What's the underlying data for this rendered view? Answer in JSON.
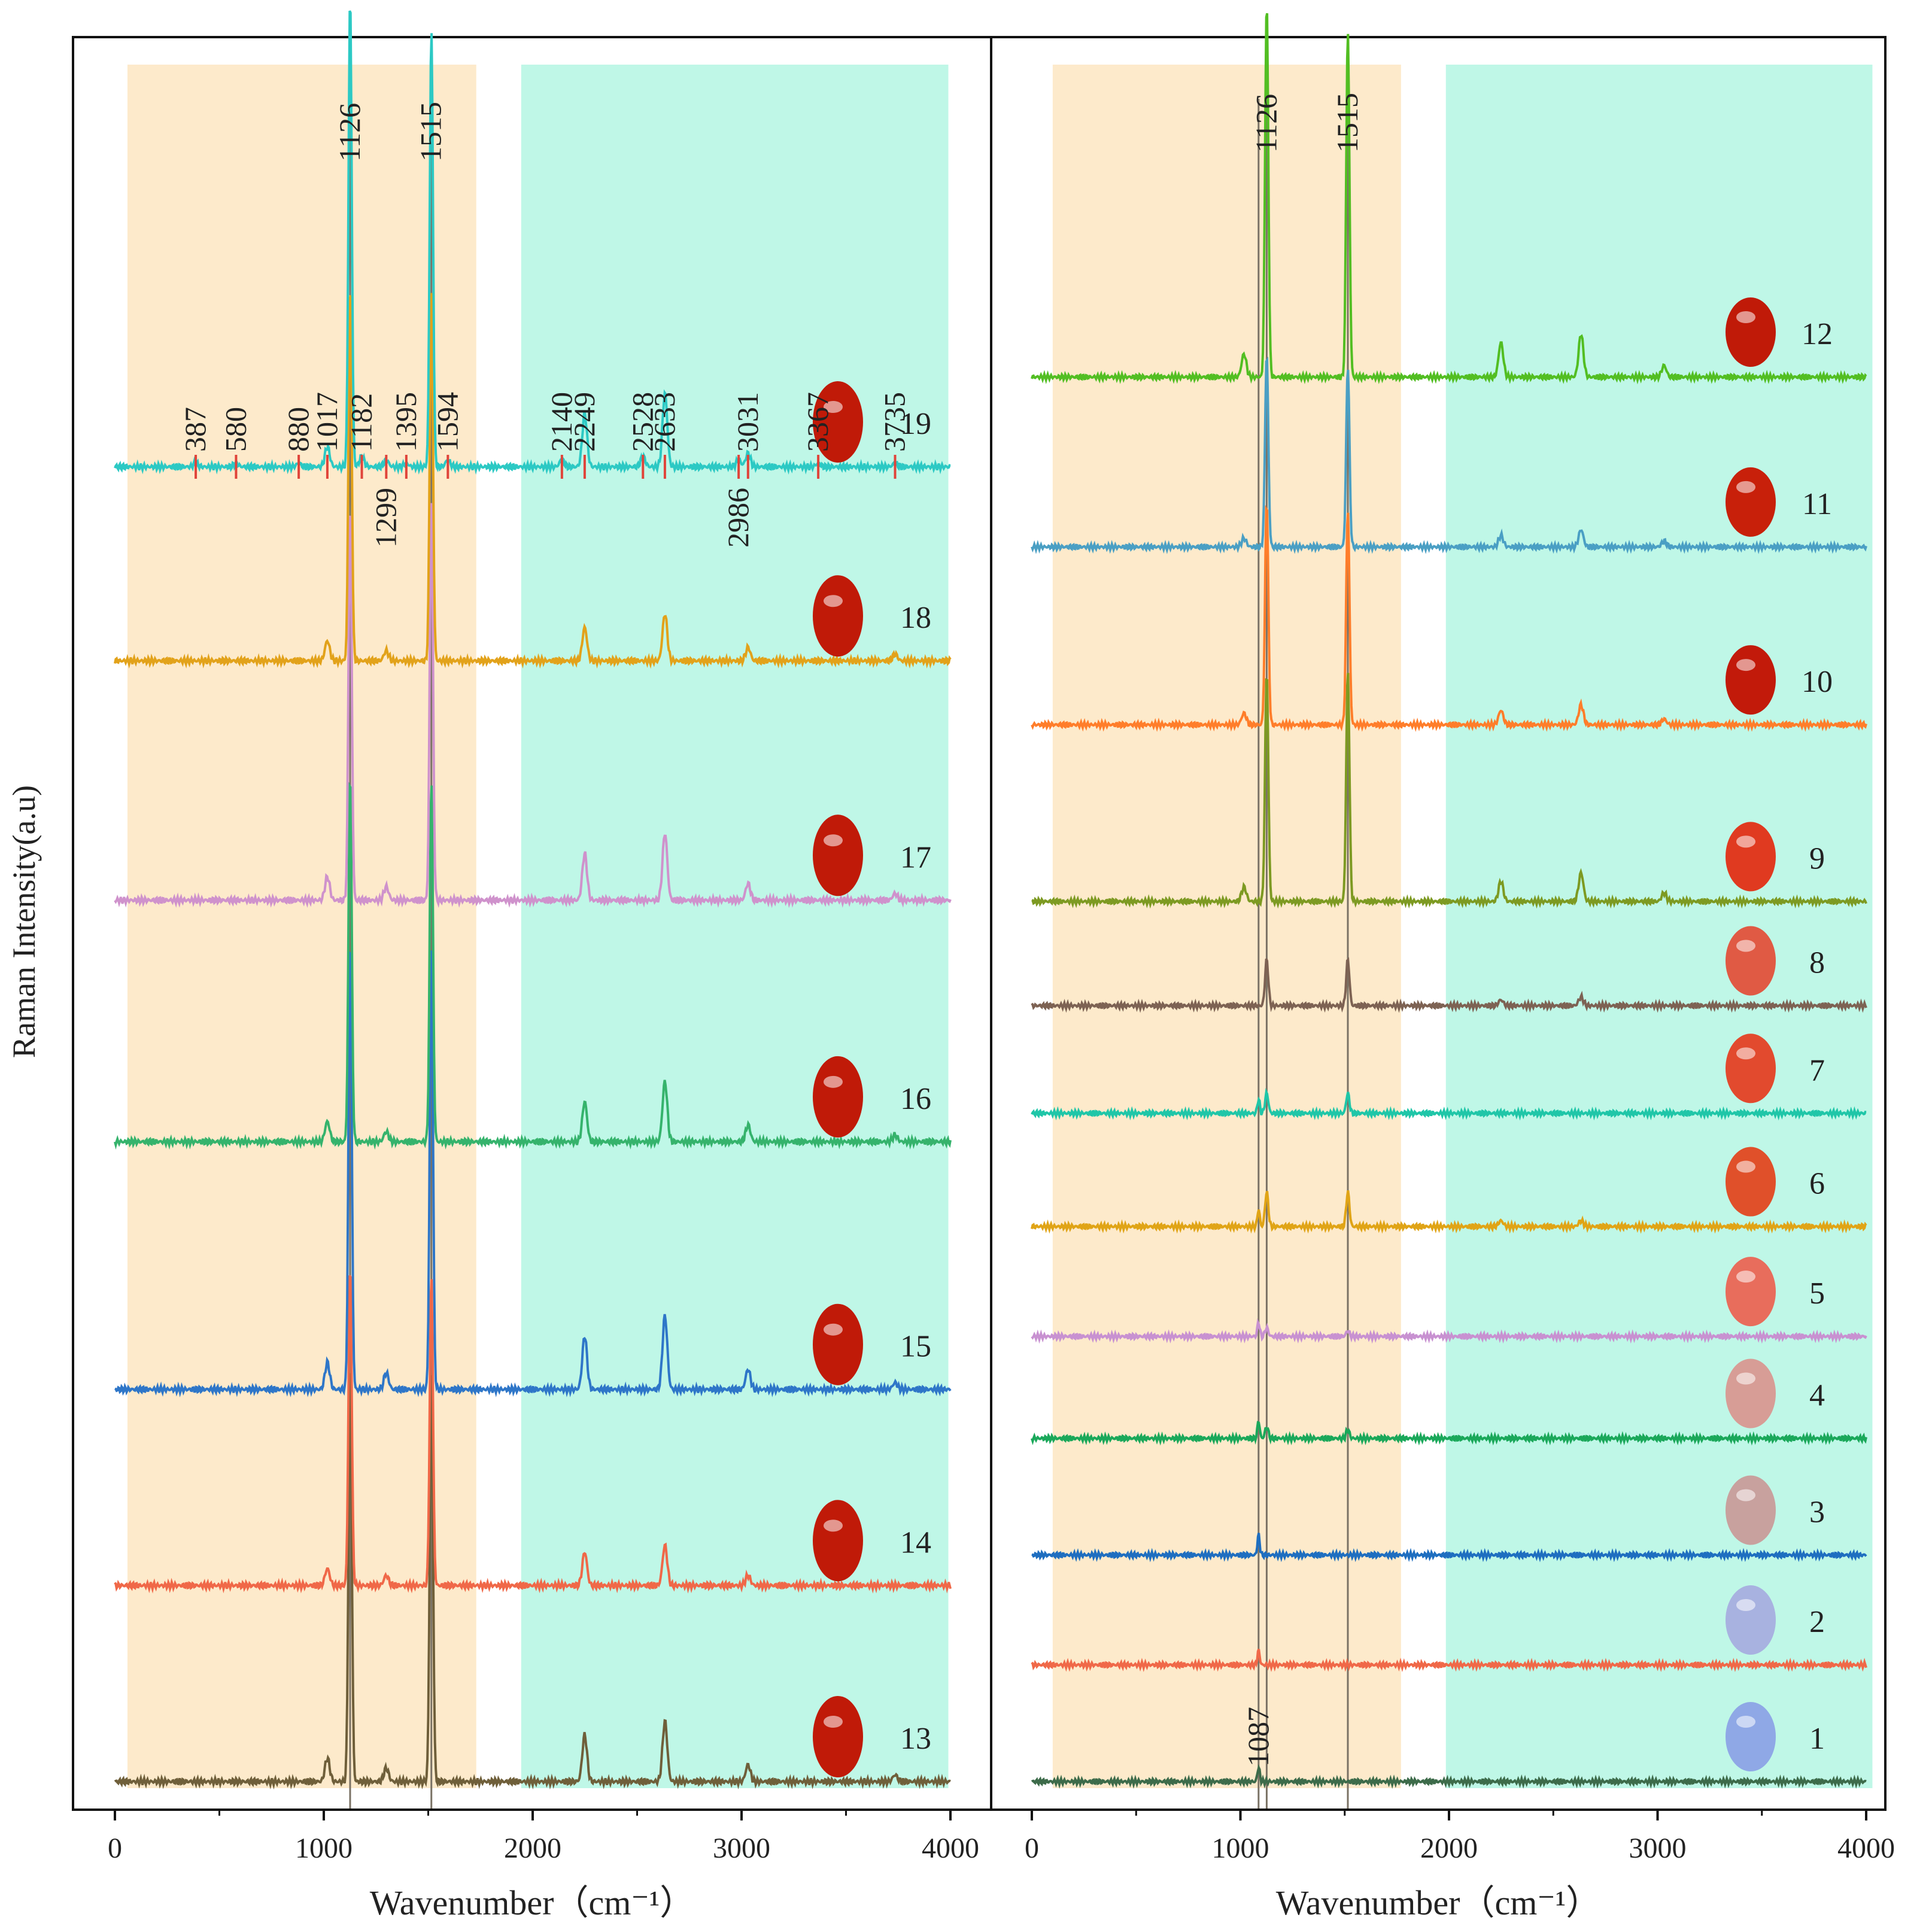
{
  "figure": {
    "ylabel": "Raman Intensity(a.u)"
  },
  "chart_data": [
    {
      "type": "line",
      "panel": "left",
      "xlabel": "Wavenumber（cm⁻¹）",
      "ylabel": "Raman Intensity(a.u)",
      "xlim": [
        -200,
        4050
      ],
      "xticks": [
        "0",
        "1000",
        "2000",
        "3000",
        "4000"
      ],
      "bands": [
        {
          "x": [
            60,
            1730
          ],
          "color": "#fdeacb"
        },
        {
          "x": [
            1945,
            3990
          ],
          "color": "#bff7e7"
        }
      ],
      "reference_lines": [
        1126,
        1515
      ],
      "series": [
        {
          "name": "13",
          "color": "#6f5f3a",
          "baseline": 2.1,
          "peaks": [
            [
              1017,
              0.07
            ],
            [
              1126,
              1.25
            ],
            [
              1299,
              0.04
            ],
            [
              1515,
              1.22
            ],
            [
              2249,
              0.14
            ],
            [
              2633,
              0.18
            ],
            [
              3031,
              0.05
            ],
            [
              3735,
              0.02
            ]
          ]
        },
        {
          "name": "14",
          "color": "#f06848",
          "baseline": 3.05,
          "peaks": [
            [
              1017,
              0.05
            ],
            [
              1126,
              0.95
            ],
            [
              1299,
              0.03
            ],
            [
              1515,
              0.92
            ],
            [
              2249,
              0.1
            ],
            [
              2633,
              0.12
            ],
            [
              3031,
              0.03
            ]
          ]
        },
        {
          "name": "15",
          "color": "#2e76c8",
          "baseline": 4.0,
          "peaks": [
            [
              1017,
              0.08
            ],
            [
              1126,
              1.35
            ],
            [
              1299,
              0.05
            ],
            [
              1515,
              1.32
            ],
            [
              2249,
              0.16
            ],
            [
              2633,
              0.22
            ],
            [
              3031,
              0.06
            ],
            [
              3735,
              0.02
            ]
          ]
        },
        {
          "name": "16",
          "color": "#35b36c",
          "baseline": 5.2,
          "peaks": [
            [
              1017,
              0.06
            ],
            [
              1126,
              1.1
            ],
            [
              1299,
              0.03
            ],
            [
              1515,
              1.08
            ],
            [
              2249,
              0.12
            ],
            [
              2633,
              0.18
            ],
            [
              3031,
              0.05
            ],
            [
              3735,
              0.02
            ]
          ]
        },
        {
          "name": "17",
          "color": "#cf92cc",
          "baseline": 6.37,
          "peaks": [
            [
              1017,
              0.07
            ],
            [
              1126,
              1.18
            ],
            [
              1299,
              0.04
            ],
            [
              1515,
              1.2
            ],
            [
              2249,
              0.14
            ],
            [
              2633,
              0.2
            ],
            [
              3031,
              0.05
            ],
            [
              3735,
              0.02
            ]
          ]
        },
        {
          "name": "18",
          "color": "#e2a21a",
          "baseline": 7.53,
          "peaks": [
            [
              1017,
              0.06
            ],
            [
              1126,
              1.12
            ],
            [
              1299,
              0.03
            ],
            [
              1515,
              1.1
            ],
            [
              2249,
              0.1
            ],
            [
              2633,
              0.14
            ],
            [
              3031,
              0.04
            ],
            [
              3735,
              0.02
            ]
          ]
        },
        {
          "name": "19",
          "color": "#2cc9c4",
          "baseline": 8.47,
          "peaks": [
            [
              387,
              0.01
            ],
            [
              580,
              0.01
            ],
            [
              880,
              0.01
            ],
            [
              1017,
              0.06
            ],
            [
              1126,
              1.4
            ],
            [
              1182,
              0.03
            ],
            [
              1299,
              0.02
            ],
            [
              1395,
              0.01
            ],
            [
              1515,
              1.3
            ],
            [
              1594,
              0.02
            ],
            [
              2140,
              0.02
            ],
            [
              2249,
              0.16
            ],
            [
              2528,
              0.03
            ],
            [
              2633,
              0.22
            ],
            [
              2986,
              0.02
            ],
            [
              3031,
              0.04
            ],
            [
              3367,
              0.01
            ],
            [
              3735,
              0.01
            ]
          ]
        }
      ],
      "labels": [
        "13",
        "14",
        "15",
        "16",
        "17",
        "18",
        "19"
      ],
      "annotations": [
        {
          "text": "387",
          "x": 387,
          "pos": "above"
        },
        {
          "text": "580",
          "x": 580,
          "pos": "above"
        },
        {
          "text": "880",
          "x": 880,
          "pos": "above"
        },
        {
          "text": "1017",
          "x": 1017,
          "pos": "above"
        },
        {
          "text": "1126",
          "x": 1126,
          "pos": "top"
        },
        {
          "text": "1182",
          "x": 1182,
          "pos": "above"
        },
        {
          "text": "1299",
          "x": 1299,
          "pos": "below"
        },
        {
          "text": "1395",
          "x": 1395,
          "pos": "above"
        },
        {
          "text": "1515",
          "x": 1515,
          "pos": "top"
        },
        {
          "text": "1594",
          "x": 1594,
          "pos": "above"
        },
        {
          "text": "2140",
          "x": 2140,
          "pos": "above"
        },
        {
          "text": "2249",
          "x": 2249,
          "pos": "above"
        },
        {
          "text": "2528",
          "x": 2528,
          "pos": "above"
        },
        {
          "text": "2633",
          "x": 2633,
          "pos": "above"
        },
        {
          "text": "2986",
          "x": 2986,
          "pos": "below"
        },
        {
          "text": "3031",
          "x": 3031,
          "pos": "above"
        },
        {
          "text": "3367",
          "x": 3367,
          "pos": "above"
        },
        {
          "text": "3735",
          "x": 3735,
          "pos": "above"
        }
      ]
    },
    {
      "type": "line",
      "panel": "right",
      "xlabel": "Wavenumber（cm⁻¹）",
      "xlim": [
        -50,
        4050
      ],
      "xticks": [
        "0",
        "1000",
        "2000",
        "3000",
        "4000"
      ],
      "bands": [
        {
          "x": [
            100,
            1770
          ],
          "color": "#fdeacb"
        },
        {
          "x": [
            1985,
            4030
          ],
          "color": "#bff7e7"
        }
      ],
      "reference_lines": [
        1087,
        1126,
        1515
      ],
      "series": [
        {
          "name": "1",
          "color": "#3d6b4a",
          "baseline": 0.35,
          "peaks": [
            [
              1087,
              0.05
            ]
          ]
        },
        {
          "name": "2",
          "color": "#f06848",
          "baseline": 1.38,
          "peaks": [
            [
              1087,
              0.05
            ]
          ]
        },
        {
          "name": "3",
          "color": "#1e6ec0",
          "baseline": 2.35,
          "peaks": [
            [
              1087,
              0.07
            ]
          ]
        },
        {
          "name": "4",
          "color": "#1aa85a",
          "baseline": 3.38,
          "peaks": [
            [
              1087,
              0.06
            ],
            [
              1126,
              0.04
            ],
            [
              1515,
              0.03
            ]
          ]
        },
        {
          "name": "5",
          "color": "#c891d1",
          "baseline": 4.28,
          "peaks": [
            [
              1087,
              0.05
            ],
            [
              1126,
              0.03
            ],
            [
              1515,
              0.02
            ]
          ]
        },
        {
          "name": "6",
          "color": "#e0a416",
          "baseline": 5.25,
          "peaks": [
            [
              1087,
              0.06
            ],
            [
              1126,
              0.12
            ],
            [
              1515,
              0.12
            ],
            [
              2249,
              0.02
            ],
            [
              2633,
              0.02
            ]
          ]
        },
        {
          "name": "7",
          "color": "#1fc6a8",
          "baseline": 6.25,
          "peaks": [
            [
              1087,
              0.05
            ],
            [
              1126,
              0.07
            ],
            [
              1515,
              0.07
            ]
          ]
        },
        {
          "name": "8",
          "color": "#7d6253",
          "baseline": 7.2,
          "peaks": [
            [
              1126,
              0.16
            ],
            [
              1515,
              0.16
            ],
            [
              2249,
              0.02
            ],
            [
              2633,
              0.03
            ]
          ]
        },
        {
          "name": "9",
          "color": "#7d9a22",
          "baseline": 8.12,
          "peaks": [
            [
              1017,
              0.05
            ],
            [
              1126,
              0.8
            ],
            [
              1515,
              0.8
            ],
            [
              2249,
              0.07
            ],
            [
              2633,
              0.1
            ],
            [
              3031,
              0.03
            ]
          ]
        },
        {
          "name": "10",
          "color": "#ff7d2a",
          "baseline": 9.68,
          "peaks": [
            [
              1017,
              0.04
            ],
            [
              1126,
              0.78
            ],
            [
              1515,
              0.75
            ],
            [
              2249,
              0.05
            ],
            [
              2633,
              0.07
            ],
            [
              3031,
              0.02
            ]
          ]
        },
        {
          "name": "11",
          "color": "#4a9fc4",
          "baseline": 11.25,
          "peaks": [
            [
              1017,
              0.03
            ],
            [
              1126,
              0.67
            ],
            [
              1515,
              0.63
            ],
            [
              2249,
              0.04
            ],
            [
              2633,
              0.06
            ],
            [
              3031,
              0.02
            ]
          ]
        },
        {
          "name": "12",
          "color": "#52be22",
          "baseline": 12.75,
          "peaks": [
            [
              1017,
              0.08
            ],
            [
              1126,
              1.3
            ],
            [
              1515,
              1.2
            ],
            [
              2249,
              0.12
            ],
            [
              2633,
              0.15
            ],
            [
              3031,
              0.04
            ]
          ]
        }
      ],
      "labels": [
        "1",
        "2",
        "3",
        "4",
        "5",
        "6",
        "7",
        "8",
        "9",
        "10",
        "11",
        "12"
      ],
      "annotations": [
        {
          "text": "1087",
          "x": 1087,
          "pos": "bottom"
        },
        {
          "text": "1126",
          "x": 1126,
          "pos": "top"
        },
        {
          "text": "1515",
          "x": 1515,
          "pos": "top"
        }
      ]
    }
  ]
}
